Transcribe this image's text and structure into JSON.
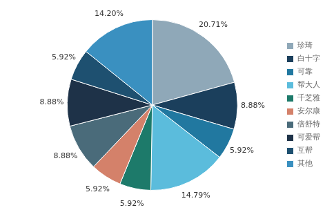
{
  "chart_data": {
    "type": "pie",
    "categories": [
      "珍琦",
      "白十字",
      "可靠",
      "帮大人",
      "千芝雅",
      "安尔康",
      "倍舒特",
      "可爱帮",
      "互帮",
      "其他"
    ],
    "values": [
      20.71,
      8.88,
      5.92,
      14.79,
      5.92,
      5.92,
      8.88,
      8.88,
      5.92,
      14.2
    ],
    "value_labels": [
      "20.71%",
      "8.88%",
      "5.92%",
      "14.79%",
      "5.92%",
      "5.92%",
      "8.88%",
      "8.88%",
      "5.92%",
      "14.20%"
    ],
    "colors": [
      "#8fa8b8",
      "#1b3f5c",
      "#2178a0",
      "#5bbcdc",
      "#1d7a6a",
      "#d4816a",
      "#4a6b7a",
      "#1e3248",
      "#1e5070",
      "#3a90c0"
    ],
    "data_labels": true,
    "legend": "right"
  }
}
